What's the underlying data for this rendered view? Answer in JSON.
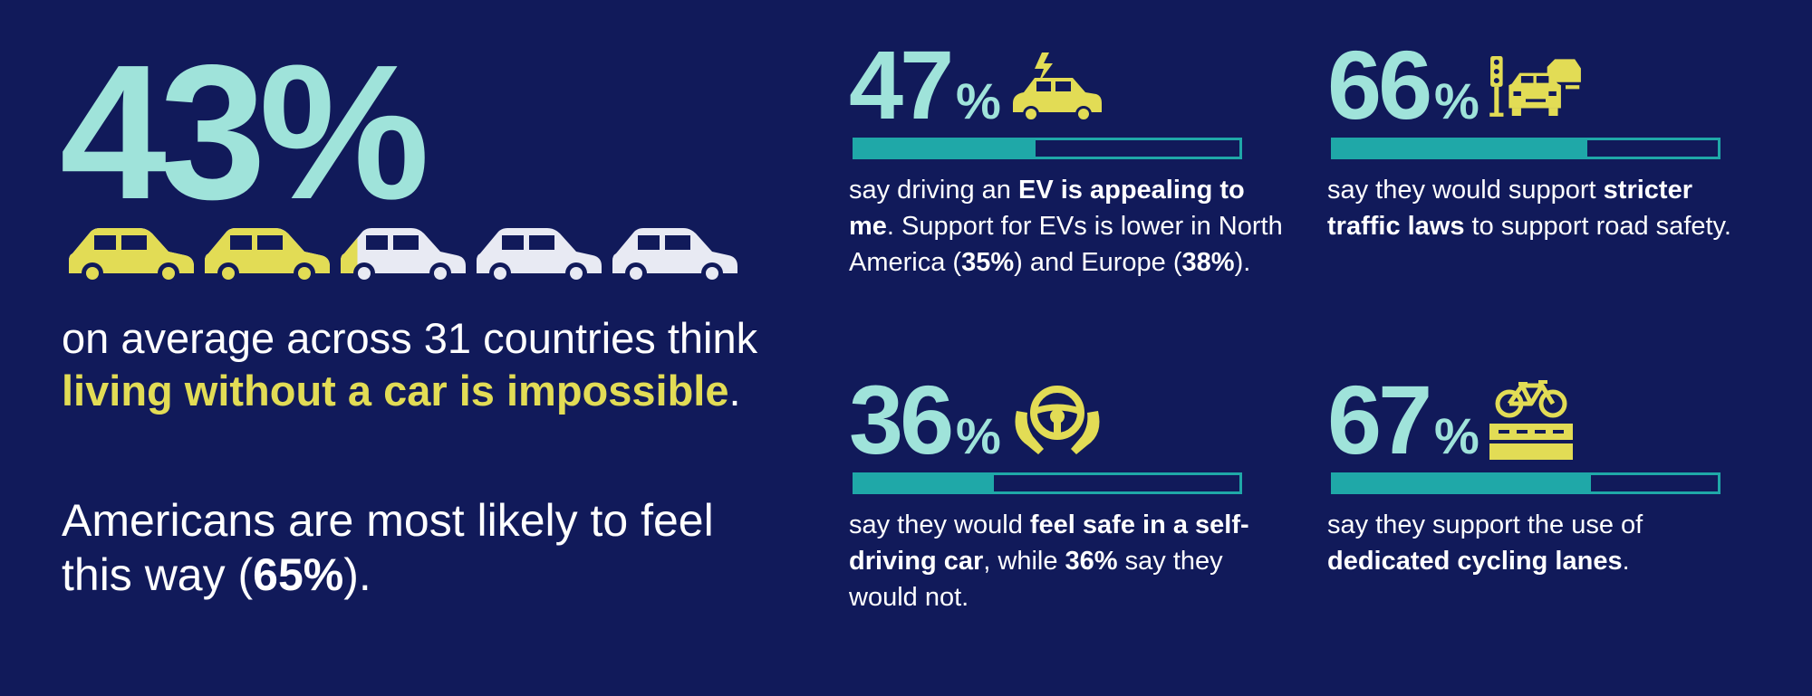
{
  "headline": {
    "value": "43%",
    "cars_total": 5,
    "cars_highlighted": 2.15,
    "color_yellow": "#e2dc55",
    "color_white": "#e8eaf3"
  },
  "left_text": {
    "line1_pre": "on average across 31 countries think ",
    "line1_highlight": "living without a car is impossible",
    "line1_post": ".",
    "line2_pre": "Americans are most likely to feel this way (",
    "line2_bold": "65%",
    "line2_post": ")."
  },
  "stats": [
    {
      "number": "47",
      "pct": "%",
      "icon": "electric-car-icon",
      "fill": 0.47,
      "text": [
        {
          "t": "say driving an ",
          "b": false
        },
        {
          "t": "EV is appealing to me",
          "b": true
        },
        {
          "t": ". Support for EVs is lower in North America (",
          "b": false
        },
        {
          "t": "35%",
          "b": true
        },
        {
          "t": ") and Europe (",
          "b": false
        },
        {
          "t": "38%",
          "b": true
        },
        {
          "t": ").",
          "b": false
        }
      ]
    },
    {
      "number": "66",
      "pct": "%",
      "icon": "traffic-light-icon",
      "fill": 0.66,
      "text": [
        {
          "t": "say they would support ",
          "b": false
        },
        {
          "t": "stricter traffic laws",
          "b": true
        },
        {
          "t": " to support road safety.",
          "b": false
        }
      ]
    },
    {
      "number": "36",
      "pct": "%",
      "icon": "steering-wheel-icon",
      "fill": 0.36,
      "text": [
        {
          "t": "say they would ",
          "b": false
        },
        {
          "t": "feel safe in a self-driving car",
          "b": true
        },
        {
          "t": ", while ",
          "b": false
        },
        {
          "t": "36%",
          "b": true
        },
        {
          "t": " say they would not.",
          "b": false
        }
      ]
    },
    {
      "number": "67",
      "pct": "%",
      "icon": "bicycle-lane-icon",
      "fill": 0.67,
      "text": [
        {
          "t": "say they support the use of ",
          "b": false
        },
        {
          "t": "dedicated cycling lanes",
          "b": true
        },
        {
          "t": ".",
          "b": false
        }
      ]
    }
  ],
  "colors": {
    "background": "#111a5a",
    "teal_text": "#9fe3da",
    "teal_bar": "#1fa8a8",
    "yellow": "#e2dc55"
  }
}
